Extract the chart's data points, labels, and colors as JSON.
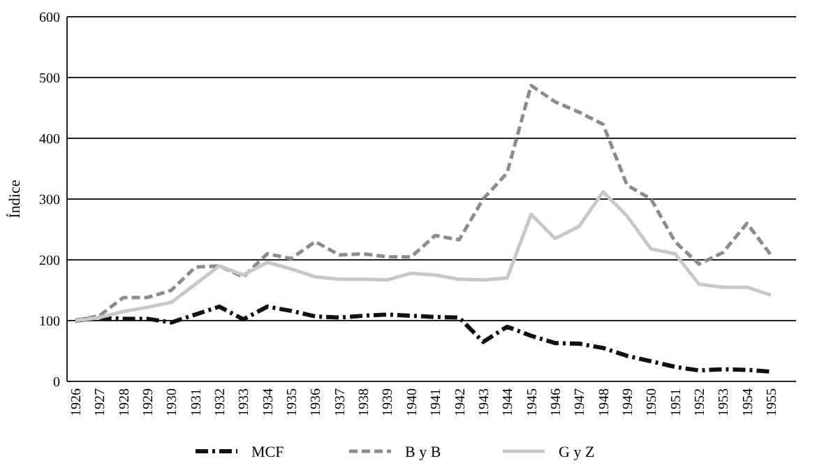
{
  "chart_data": {
    "type": "line",
    "ylabel": "Índice",
    "categories": [
      "1926",
      "1927",
      "1928",
      "1929",
      "1930",
      "1931",
      "1932",
      "1933",
      "1934",
      "1935",
      "1936",
      "1937",
      "1938",
      "1939",
      "1940",
      "1941",
      "1942",
      "1943",
      "1944",
      "1945",
      "1946",
      "1947",
      "1948",
      "1949",
      "1950",
      "1951",
      "1952",
      "1953",
      "1954",
      "1955"
    ],
    "series": [
      {
        "name": "MCF",
        "color": "#111111",
        "line_style": "dashdot",
        "values": [
          100,
          105,
          103,
          103,
          97,
          110,
          123,
          102,
          123,
          116,
          107,
          105,
          108,
          110,
          108,
          106,
          105,
          65,
          90,
          75,
          63,
          62,
          55,
          42,
          33,
          24,
          18,
          20,
          19,
          16
        ]
      },
      {
        "name": "B y B",
        "color": "#8c8c8c",
        "line_style": "dashed",
        "values": [
          100,
          108,
          138,
          138,
          150,
          188,
          190,
          172,
          210,
          202,
          230,
          208,
          210,
          205,
          205,
          240,
          233,
          300,
          343,
          487,
          460,
          443,
          423,
          323,
          300,
          230,
          193,
          212,
          260,
          208
        ]
      },
      {
        "name": "G y Z",
        "color": "#c8c8c8",
        "line_style": "solid",
        "values": [
          100,
          105,
          115,
          122,
          130,
          160,
          190,
          175,
          196,
          185,
          172,
          168,
          168,
          167,
          178,
          175,
          168,
          167,
          170,
          275,
          235,
          255,
          312,
          272,
          218,
          210,
          160,
          155,
          155,
          142
        ]
      }
    ],
    "ylim": [
      0,
      600
    ],
    "yticks": [
      0,
      100,
      200,
      300,
      400,
      500,
      600
    ],
    "grid": "y",
    "legend": "bottom"
  }
}
